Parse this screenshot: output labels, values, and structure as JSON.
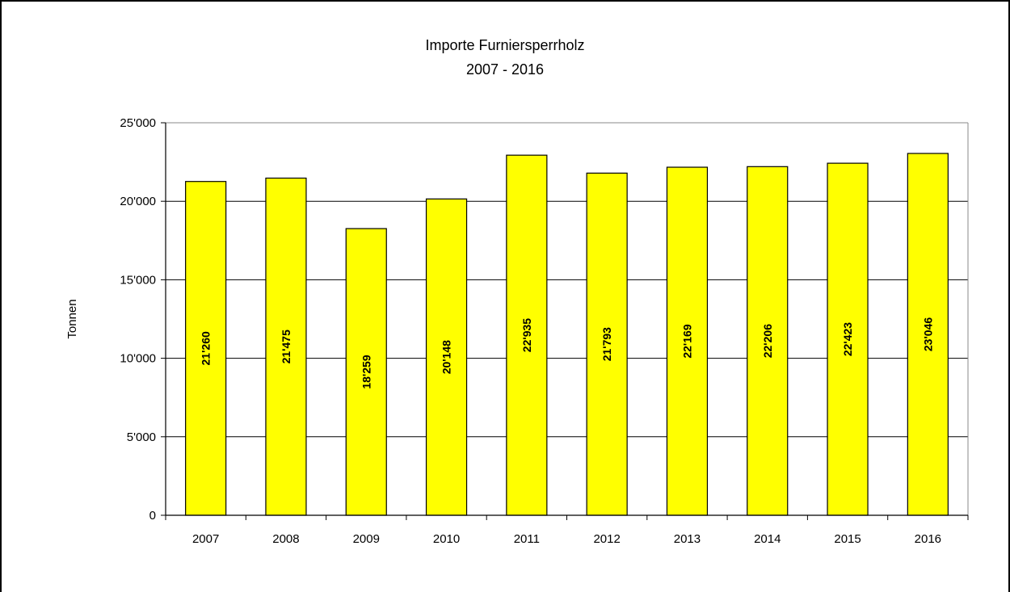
{
  "chart_data": {
    "type": "bar",
    "title": "Importe Furniersperrholz",
    "subtitle": "2007 - 2016",
    "xlabel": "",
    "ylabel": "Tonnen",
    "ylim": [
      0,
      25000
    ],
    "yticks": [
      0,
      5000,
      10000,
      15000,
      20000,
      25000
    ],
    "ytick_labels": [
      "0",
      "5'000",
      "10'000",
      "15'000",
      "20'000",
      "25'000"
    ],
    "categories": [
      "2007",
      "2008",
      "2009",
      "2010",
      "2011",
      "2012",
      "2013",
      "2014",
      "2015",
      "2016"
    ],
    "values": [
      21260,
      21475,
      18259,
      20148,
      22935,
      21793,
      22169,
      22206,
      22423,
      23046
    ],
    "value_labels": [
      "21'260",
      "21'475",
      "18'259",
      "20'148",
      "22'935",
      "21'793",
      "22'169",
      "22'206",
      "22'423",
      "23'046"
    ],
    "bar_color": "#ffff00",
    "grid": true,
    "legend": "none"
  }
}
